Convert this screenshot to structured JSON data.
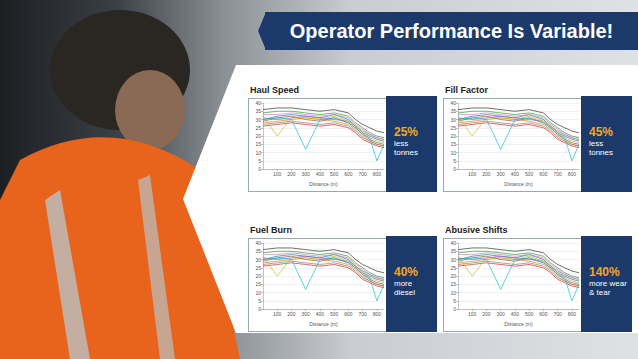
{
  "header": {
    "title": "Operator Performance Is Variable!"
  },
  "chart_data": [
    {
      "type": "line",
      "title": "Haul Speed",
      "xlabel": "Distance (m)",
      "annotation": {
        "value": 25,
        "label": "25%",
        "text": "less tonnes"
      },
      "x": [
        0,
        100,
        200,
        300,
        400,
        500,
        600,
        650,
        700,
        750,
        800,
        850
      ],
      "xlim": [
        0,
        850
      ],
      "xticks": [
        100,
        200,
        300,
        400,
        500,
        600,
        700,
        800
      ],
      "ylim": [
        0,
        40
      ],
      "yticks": [
        0,
        5,
        10,
        15,
        20,
        25,
        30,
        35,
        40
      ],
      "grid": true,
      "series": [
        {
          "color": "#333333",
          "values": [
            36,
            37,
            37,
            36,
            35,
            36,
            34,
            30,
            27,
            25,
            23,
            22
          ]
        },
        {
          "color": "#1f77b4",
          "values": [
            30,
            32,
            33,
            32,
            31,
            33,
            30,
            26,
            22,
            20,
            18,
            17
          ]
        },
        {
          "color": "#ff7f0e",
          "values": [
            28,
            29,
            30,
            31,
            30,
            29,
            27,
            24,
            20,
            17,
            15,
            14
          ]
        },
        {
          "color": "#2ca02c",
          "values": [
            34,
            35,
            35,
            34,
            33,
            34,
            32,
            28,
            25,
            22,
            20,
            19
          ]
        },
        {
          "color": "#d62728",
          "values": [
            26,
            27,
            28,
            27,
            26,
            27,
            25,
            22,
            18,
            16,
            14,
            13
          ]
        },
        {
          "color": "#9467bd",
          "values": [
            31,
            30,
            31,
            32,
            31,
            30,
            29,
            26,
            23,
            21,
            19,
            18
          ]
        },
        {
          "color": "#8c564b",
          "values": [
            29,
            31,
            32,
            30,
            29,
            31,
            28,
            25,
            21,
            18,
            16,
            15
          ]
        },
        {
          "color": "#e377c2",
          "values": [
            33,
            33,
            34,
            33,
            32,
            33,
            31,
            27,
            24,
            21,
            19,
            18
          ]
        },
        {
          "color": "#7f7f7f",
          "values": [
            27,
            28,
            29,
            28,
            27,
            28,
            26,
            23,
            19,
            17,
            15,
            14
          ]
        },
        {
          "color": "#bcbd22",
          "values": [
            32,
            20,
            31,
            31,
            30,
            32,
            29,
            26,
            22,
            19,
            17,
            16
          ]
        },
        {
          "color": "#17becf",
          "values": [
            30,
            31,
            30,
            12,
            30,
            31,
            28,
            25,
            21,
            19,
            5,
            15
          ]
        }
      ]
    },
    {
      "type": "line",
      "title": "Fill Factor",
      "xlabel": "Distance (m)",
      "annotation": {
        "value": 45,
        "label": "45%",
        "text": "less tonnes"
      },
      "x": [
        0,
        100,
        200,
        300,
        400,
        500,
        600,
        650,
        700,
        750,
        800,
        850
      ],
      "xlim": [
        0,
        850
      ],
      "xticks": [
        100,
        200,
        300,
        400,
        500,
        600,
        700,
        800
      ],
      "ylim": [
        0,
        40
      ],
      "yticks": [
        0,
        5,
        10,
        15,
        20,
        25,
        30,
        35,
        40
      ],
      "grid": true,
      "series": [
        {
          "color": "#333333",
          "values": [
            36,
            37,
            37,
            36,
            35,
            36,
            34,
            30,
            27,
            25,
            23,
            22
          ]
        },
        {
          "color": "#1f77b4",
          "values": [
            30,
            32,
            33,
            32,
            31,
            33,
            30,
            26,
            22,
            20,
            18,
            17
          ]
        },
        {
          "color": "#ff7f0e",
          "values": [
            28,
            29,
            30,
            31,
            30,
            29,
            27,
            24,
            20,
            17,
            15,
            14
          ]
        },
        {
          "color": "#2ca02c",
          "values": [
            34,
            35,
            35,
            34,
            33,
            34,
            32,
            28,
            25,
            22,
            20,
            19
          ]
        },
        {
          "color": "#d62728",
          "values": [
            26,
            27,
            28,
            27,
            26,
            27,
            25,
            22,
            18,
            16,
            14,
            13
          ]
        },
        {
          "color": "#9467bd",
          "values": [
            31,
            30,
            31,
            32,
            31,
            30,
            29,
            26,
            23,
            21,
            19,
            18
          ]
        },
        {
          "color": "#8c564b",
          "values": [
            29,
            31,
            32,
            30,
            29,
            31,
            28,
            25,
            21,
            18,
            16,
            15
          ]
        },
        {
          "color": "#e377c2",
          "values": [
            33,
            33,
            34,
            33,
            32,
            33,
            31,
            27,
            24,
            21,
            19,
            18
          ]
        },
        {
          "color": "#7f7f7f",
          "values": [
            27,
            28,
            29,
            28,
            27,
            28,
            26,
            23,
            19,
            17,
            15,
            14
          ]
        },
        {
          "color": "#bcbd22",
          "values": [
            32,
            20,
            31,
            31,
            30,
            32,
            29,
            26,
            22,
            19,
            17,
            16
          ]
        },
        {
          "color": "#17becf",
          "values": [
            30,
            31,
            30,
            12,
            30,
            31,
            28,
            25,
            21,
            19,
            5,
            15
          ]
        }
      ]
    },
    {
      "type": "line",
      "title": "Fuel Burn",
      "xlabel": "Distance (m)",
      "annotation": {
        "value": 40,
        "label": "40%",
        "text": "more diesel"
      },
      "x": [
        0,
        100,
        200,
        300,
        400,
        500,
        600,
        650,
        700,
        750,
        800,
        850
      ],
      "xlim": [
        0,
        850
      ],
      "xticks": [
        100,
        200,
        300,
        400,
        500,
        600,
        700,
        800
      ],
      "ylim": [
        0,
        40
      ],
      "yticks": [
        0,
        5,
        10,
        15,
        20,
        25,
        30,
        35,
        40
      ],
      "grid": true,
      "series": [
        {
          "color": "#333333",
          "values": [
            36,
            37,
            37,
            36,
            35,
            36,
            34,
            30,
            27,
            25,
            23,
            22
          ]
        },
        {
          "color": "#1f77b4",
          "values": [
            30,
            32,
            33,
            32,
            31,
            33,
            30,
            26,
            22,
            20,
            18,
            17
          ]
        },
        {
          "color": "#ff7f0e",
          "values": [
            28,
            29,
            30,
            31,
            30,
            29,
            27,
            24,
            20,
            17,
            15,
            14
          ]
        },
        {
          "color": "#2ca02c",
          "values": [
            34,
            35,
            35,
            34,
            33,
            34,
            32,
            28,
            25,
            22,
            20,
            19
          ]
        },
        {
          "color": "#d62728",
          "values": [
            26,
            27,
            28,
            27,
            26,
            27,
            25,
            22,
            18,
            16,
            14,
            13
          ]
        },
        {
          "color": "#9467bd",
          "values": [
            31,
            30,
            31,
            32,
            31,
            30,
            29,
            26,
            23,
            21,
            19,
            18
          ]
        },
        {
          "color": "#8c564b",
          "values": [
            29,
            31,
            32,
            30,
            29,
            31,
            28,
            25,
            21,
            18,
            16,
            15
          ]
        },
        {
          "color": "#e377c2",
          "values": [
            33,
            33,
            34,
            33,
            32,
            33,
            31,
            27,
            24,
            21,
            19,
            18
          ]
        },
        {
          "color": "#7f7f7f",
          "values": [
            27,
            28,
            29,
            28,
            27,
            28,
            26,
            23,
            19,
            17,
            15,
            14
          ]
        },
        {
          "color": "#bcbd22",
          "values": [
            32,
            20,
            31,
            31,
            30,
            32,
            29,
            26,
            22,
            19,
            17,
            16
          ]
        },
        {
          "color": "#17becf",
          "values": [
            30,
            31,
            30,
            12,
            30,
            31,
            28,
            25,
            21,
            19,
            5,
            15
          ]
        }
      ]
    },
    {
      "type": "line",
      "title": "Abusive Shifts",
      "xlabel": "Distance (m)",
      "annotation": {
        "value": 140,
        "label": "140%",
        "text": "more wear & tear"
      },
      "x": [
        0,
        100,
        200,
        300,
        400,
        500,
        600,
        650,
        700,
        750,
        800,
        850
      ],
      "xlim": [
        0,
        850
      ],
      "xticks": [
        100,
        200,
        300,
        400,
        500,
        600,
        700,
        800
      ],
      "ylim": [
        0,
        40
      ],
      "yticks": [
        0,
        5,
        10,
        15,
        20,
        25,
        30,
        35,
        40
      ],
      "grid": true,
      "series": [
        {
          "color": "#333333",
          "values": [
            36,
            37,
            37,
            36,
            35,
            36,
            34,
            30,
            27,
            25,
            23,
            22
          ]
        },
        {
          "color": "#1f77b4",
          "values": [
            30,
            32,
            33,
            32,
            31,
            33,
            30,
            26,
            22,
            20,
            18,
            17
          ]
        },
        {
          "color": "#ff7f0e",
          "values": [
            28,
            29,
            30,
            31,
            30,
            29,
            27,
            24,
            20,
            17,
            15,
            14
          ]
        },
        {
          "color": "#2ca02c",
          "values": [
            34,
            35,
            35,
            34,
            33,
            34,
            32,
            28,
            25,
            22,
            20,
            19
          ]
        },
        {
          "color": "#d62728",
          "values": [
            26,
            27,
            28,
            27,
            26,
            27,
            25,
            22,
            18,
            16,
            14,
            13
          ]
        },
        {
          "color": "#9467bd",
          "values": [
            31,
            30,
            31,
            32,
            31,
            30,
            29,
            26,
            23,
            21,
            19,
            18
          ]
        },
        {
          "color": "#8c564b",
          "values": [
            29,
            31,
            32,
            30,
            29,
            31,
            28,
            25,
            21,
            18,
            16,
            15
          ]
        },
        {
          "color": "#e377c2",
          "values": [
            33,
            33,
            34,
            33,
            32,
            33,
            31,
            27,
            24,
            21,
            19,
            18
          ]
        },
        {
          "color": "#7f7f7f",
          "values": [
            27,
            28,
            29,
            28,
            27,
            28,
            26,
            23,
            19,
            17,
            15,
            14
          ]
        },
        {
          "color": "#bcbd22",
          "values": [
            32,
            20,
            31,
            31,
            30,
            32,
            29,
            26,
            22,
            19,
            17,
            16
          ]
        },
        {
          "color": "#17becf",
          "values": [
            30,
            31,
            30,
            12,
            30,
            31,
            28,
            25,
            21,
            19,
            5,
            15
          ]
        }
      ]
    }
  ]
}
